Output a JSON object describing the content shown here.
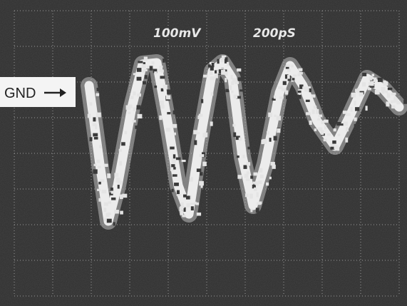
{
  "scope": {
    "labels": {
      "volts_per_div": "100mV",
      "time_per_div": "200pS"
    },
    "marker": {
      "label": "GND"
    }
  }
}
